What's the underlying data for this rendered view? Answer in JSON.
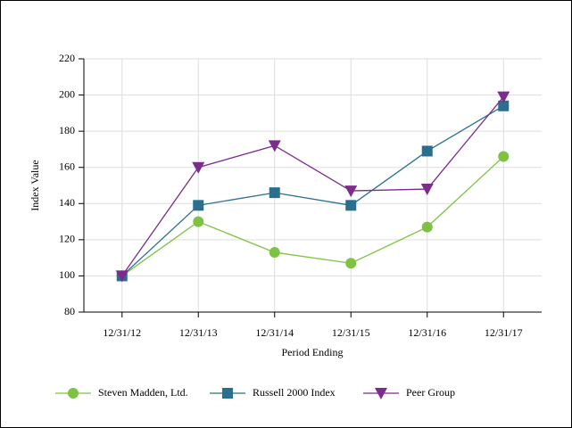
{
  "chart_data": {
    "type": "line",
    "x_label": "Period Ending",
    "y_label": "Index Value",
    "categories": [
      "12/31/12",
      "12/31/13",
      "12/31/14",
      "12/31/15",
      "12/31/16",
      "12/31/17"
    ],
    "series": [
      {
        "name": "Steven Madden, Ltd.",
        "color": "#7dc242",
        "marker": "circle",
        "values": [
          100,
          130,
          113,
          107,
          127,
          166
        ]
      },
      {
        "name": "Russell 2000 Index",
        "color": "#2b6f8f",
        "marker": "square",
        "values": [
          100,
          139,
          146,
          139,
          169,
          194
        ]
      },
      {
        "name": "Peer Group",
        "color": "#7b2c8c",
        "marker": "triangle-down",
        "values": [
          100,
          160,
          172,
          147,
          148,
          199
        ]
      }
    ],
    "ylim": [
      80,
      220
    ],
    "yticks": [
      80,
      100,
      120,
      140,
      160,
      180,
      200,
      220
    ],
    "grid": true,
    "legend": "bottom"
  }
}
